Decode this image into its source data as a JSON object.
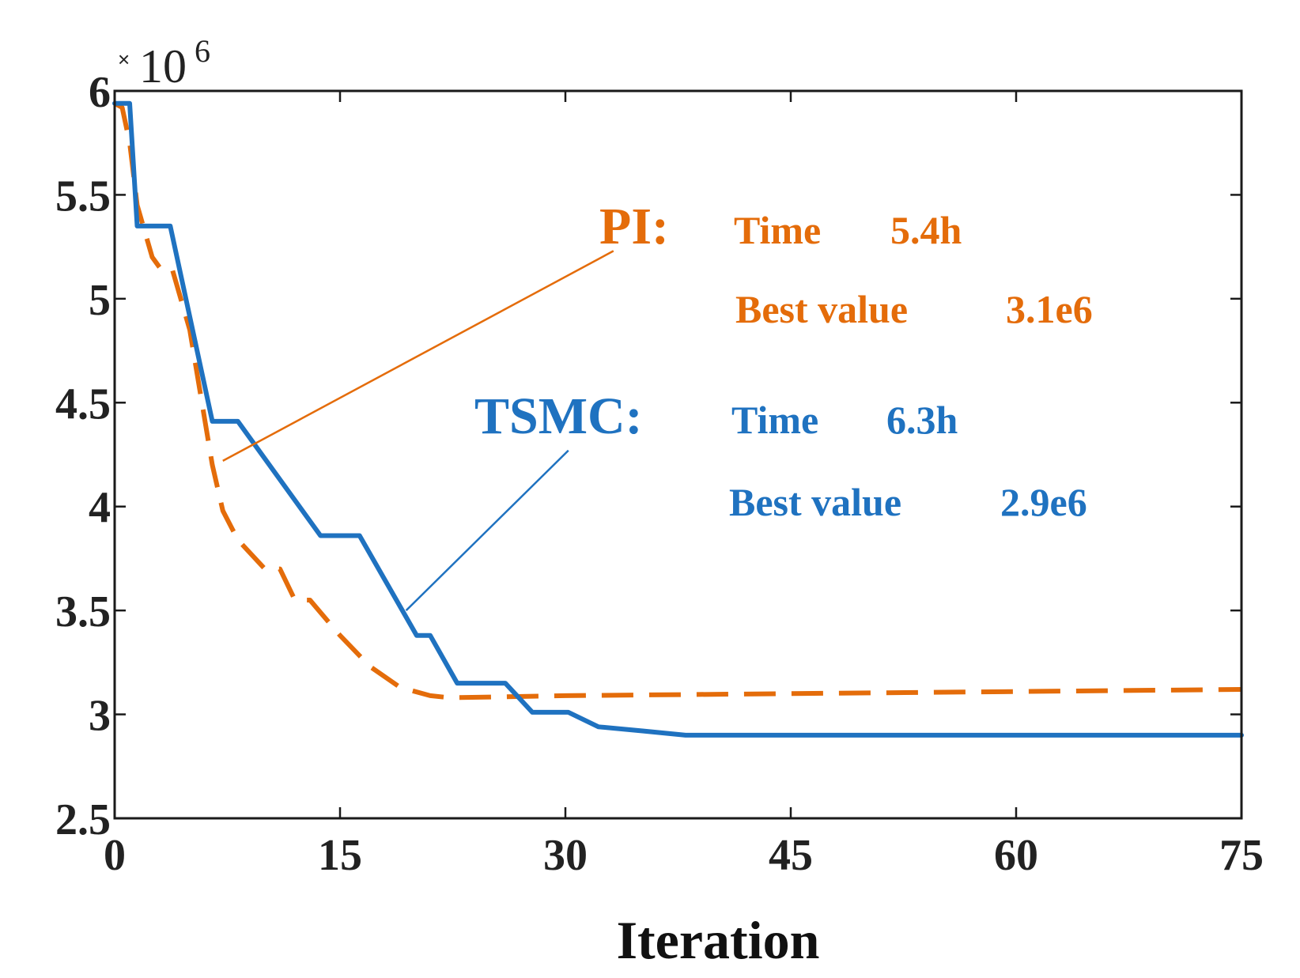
{
  "chart_data": {
    "type": "line",
    "title": "",
    "xlabel": "Iteration",
    "ylabel": "",
    "y_exponent_label": {
      "times": "×",
      "base": "10",
      "power": "6"
    },
    "xlim": [
      0,
      75
    ],
    "ylim": [
      2.5,
      6
    ],
    "xticks": [
      0,
      15,
      30,
      45,
      60,
      75
    ],
    "xtick_labels": [
      "0",
      "15",
      "30",
      "45",
      "60",
      "75"
    ],
    "yticks": [
      2.5,
      3,
      3.5,
      4,
      4.5,
      5,
      5.5,
      6
    ],
    "ytick_labels": [
      "2.5",
      "3",
      "3.5",
      "4",
      "4.5",
      "5",
      "5.5",
      "6"
    ],
    "grid": false,
    "series": [
      {
        "name": "TSMC",
        "color": "#1f72c0",
        "style": "solid",
        "x": [
          0,
          1,
          1.5,
          2.3,
          3.7,
          6.5,
          8.2,
          13.7,
          16.3,
          20.1,
          21,
          22.8,
          26,
          27.8,
          30.2,
          32.2,
          35.2,
          38,
          75
        ],
        "y": [
          5.94,
          5.94,
          5.35,
          5.35,
          5.35,
          4.41,
          4.41,
          3.86,
          3.86,
          3.38,
          3.38,
          3.15,
          3.15,
          3.01,
          3.01,
          2.94,
          2.92,
          2.9,
          2.9
        ]
      },
      {
        "name": "PI",
        "color": "#e46c0a",
        "style": "dashed",
        "x": [
          0,
          0.5,
          1,
          1.5,
          2.5,
          3,
          3.8,
          5,
          6.5,
          7.2,
          8.2,
          10,
          11,
          12,
          13,
          15,
          17,
          19,
          21,
          22.3,
          30,
          45,
          60,
          75
        ],
        "y": [
          5.94,
          5.92,
          5.75,
          5.45,
          5.2,
          5.15,
          5.15,
          4.85,
          4.2,
          3.98,
          3.84,
          3.7,
          3.7,
          3.55,
          3.55,
          3.38,
          3.23,
          3.13,
          3.09,
          3.08,
          3.09,
          3.1,
          3.11,
          3.12
        ]
      }
    ],
    "annotations": [
      {
        "series": "PI",
        "head": "PI:",
        "line1": {
          "label": "Time",
          "value": "5.4h"
        },
        "line2": {
          "label": "Best value",
          "value": "3.1e6"
        },
        "pointer_from": [
          33.2,
          5.23
        ],
        "pointer_to": [
          7.2,
          4.22
        ]
      },
      {
        "series": "TSMC",
        "head": "TSMC:",
        "line1": {
          "label": "Time",
          "value": "6.3h"
        },
        "line2": {
          "label": "Best value",
          "value": "2.9e6"
        },
        "pointer_from": [
          30.2,
          4.27
        ],
        "pointer_to": [
          19.4,
          3.5
        ]
      }
    ]
  }
}
